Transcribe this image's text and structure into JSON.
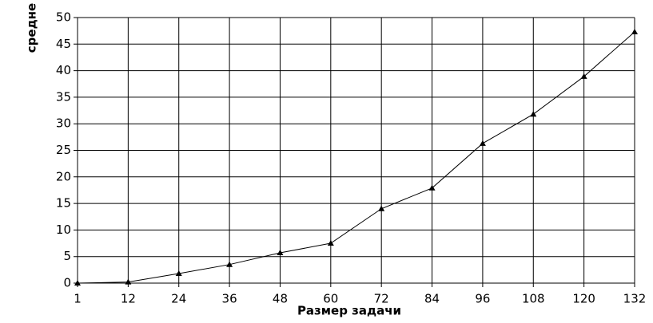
{
  "chart_data": {
    "type": "line",
    "x_label": "Размер задачи",
    "y_label": "средне",
    "categories": [
      "1",
      "12",
      "24",
      "36",
      "48",
      "60",
      "72",
      "84",
      "96",
      "108",
      "120",
      "132"
    ],
    "series": [
      {
        "color": "#000000",
        "values": [
          0,
          0.2,
          1.8,
          3.5,
          5.7,
          7.5,
          14,
          17.9,
          26.3,
          31.8,
          38.9,
          47.3
        ]
      }
    ],
    "ylim": [
      0,
      50
    ],
    "yticks": [
      0,
      5,
      10,
      15,
      20,
      25,
      30,
      35,
      40,
      45,
      50
    ],
    "grid": true
  }
}
